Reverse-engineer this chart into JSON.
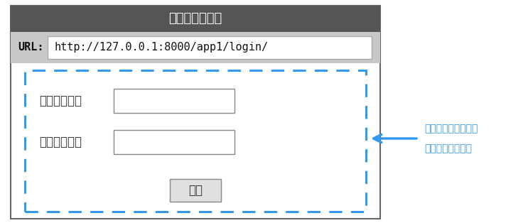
{
  "title": "ウェブブラウザ",
  "title_bg": "#555555",
  "title_color": "#ffffff",
  "url_bar_bg": "#c8c8c8",
  "url_label": "URL:",
  "url_text": "http://127.0.0.1:8000/app1/login/",
  "url_box_bg": "#ffffff",
  "body_bg": "#ffffff",
  "outer_border_color": "#666666",
  "dashed_border_color": "#3399ee",
  "field_label_1": "ユーザー名：",
  "field_label_2": "パスワード：",
  "submit_label": "送信",
  "annotation_line1": "表示されるページで",
  "annotation_line2": "レスポンスを確認",
  "annotation_color": "#3399ee",
  "arrow_color": "#3399ee",
  "fig_bg": "#ffffff"
}
